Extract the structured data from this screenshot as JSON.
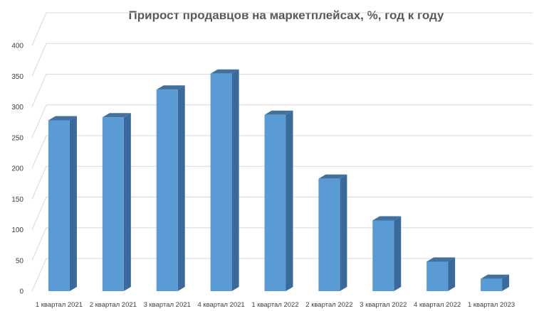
{
  "chart_data": {
    "type": "bar",
    "title": "Прирост продавцов на маркетплейсах, %, год к году",
    "xlabel": "",
    "ylabel": "",
    "categories": [
      "1 квартал 2021",
      "2 квартал 2021",
      "3 квартал 2021",
      "4 квартал 2021",
      "1 квартал 2022",
      "2 квартал 2022",
      "3 квартал 2022",
      "4 квартал 2022",
      "1 квартал 2023"
    ],
    "values": [
      278,
      283,
      328,
      354,
      287,
      183,
      115,
      48,
      20
    ],
    "yticks": [
      "0",
      "50",
      "100",
      "150",
      "200",
      "250",
      "300",
      "350",
      "400"
    ],
    "ylim": [
      0,
      400
    ],
    "grid": true,
    "legend": "none",
    "style": "3d-column",
    "colors": {
      "bar_front": "#5b9bd5",
      "bar_side": "#3a6a9c",
      "bar_top": "#41719c"
    }
  }
}
